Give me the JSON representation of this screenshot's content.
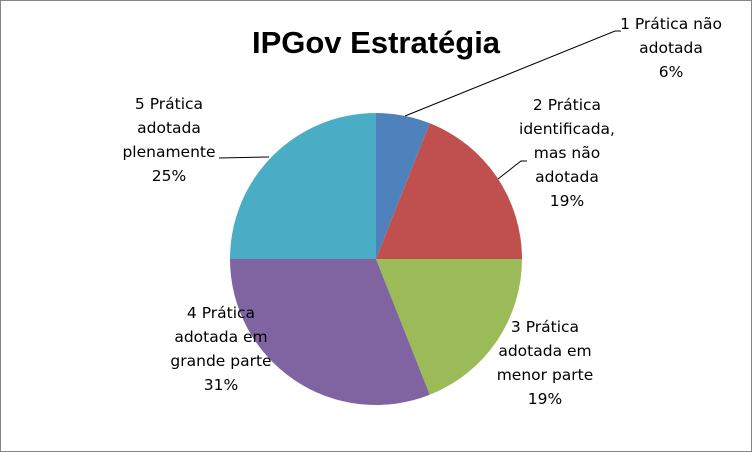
{
  "chart_data": {
    "type": "pie",
    "title": "IPGov Estratégia",
    "categories": [
      "1 Prática não adotada",
      "2 Prática identificada, mas não adotada",
      "3 Prática adotada em menor parte",
      "4 Prática adotada em grande parte",
      "5 Prática adotada plenamente"
    ],
    "values": [
      6,
      19,
      19,
      31,
      25
    ],
    "unit": "%",
    "colors": [
      "#4F81BD",
      "#C0504D",
      "#9BBB59",
      "#8064A2",
      "#4BACC6"
    ],
    "data_labels": [
      {
        "lines": [
          "1 Prática não",
          "adotada"
        ],
        "pct": "6%"
      },
      {
        "lines": [
          "2 Prática",
          "identificada,",
          "mas não",
          "adotada"
        ],
        "pct": "19%"
      },
      {
        "lines": [
          "3 Prática",
          "adotada em",
          "menor parte"
        ],
        "pct": "19%"
      },
      {
        "lines": [
          "4 Prática",
          "adotada em",
          "grande parte"
        ],
        "pct": "31%"
      },
      {
        "lines": [
          "5 Prática",
          "adotada",
          "plenamente"
        ],
        "pct": "25%"
      }
    ],
    "legend": "none"
  }
}
